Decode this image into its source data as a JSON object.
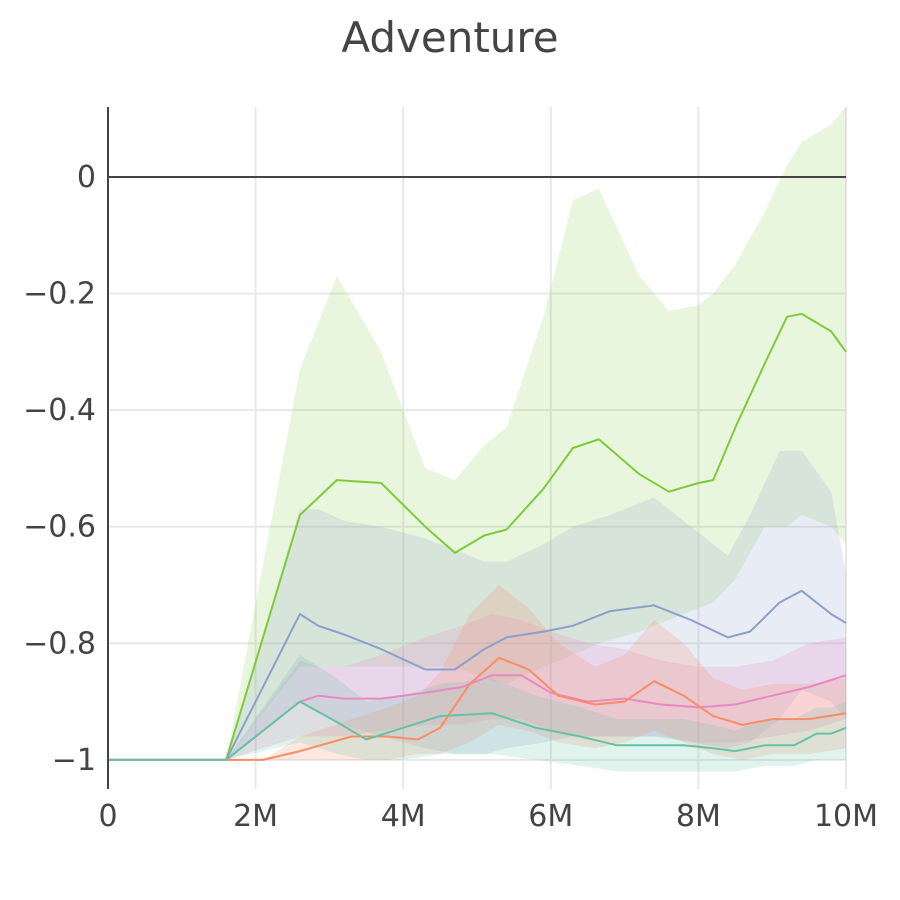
{
  "chart_data": {
    "type": "line",
    "title": "Adventure",
    "xlabel": "",
    "ylabel": "",
    "xlim": [
      0,
      10000000
    ],
    "ylim": [
      -1.05,
      0.12
    ],
    "grid": true,
    "legend": "none",
    "x_ticks": [
      {
        "value": 0,
        "label": "0"
      },
      {
        "value": 2000000,
        "label": "2M"
      },
      {
        "value": 4000000,
        "label": "4M"
      },
      {
        "value": 6000000,
        "label": "6M"
      },
      {
        "value": 8000000,
        "label": "8M"
      },
      {
        "value": 10000000,
        "label": "10M"
      }
    ],
    "y_ticks": [
      {
        "value": 0,
        "label": "0"
      },
      {
        "value": -0.2,
        "label": "−0.2"
      },
      {
        "value": -0.4,
        "label": "−0.4"
      },
      {
        "value": -0.6,
        "label": "−0.6"
      },
      {
        "value": -0.8,
        "label": "−0.8"
      },
      {
        "value": -1,
        "label": "−1"
      }
    ],
    "series": [
      {
        "color": "#7ecb3a",
        "band_color": "#7ecb3a",
        "band_opacity": 0.17,
        "x": [
          0,
          1600000,
          2600000,
          3100000,
          3700000,
          4300000,
          4700000,
          5100000,
          5400000,
          5900000,
          6300000,
          6650000,
          7200000,
          7600000,
          8000000,
          8200000,
          8500000,
          8900000,
          9200000,
          9400000,
          9800000,
          10000000
        ],
        "y": [
          -1,
          -1,
          -0.58,
          -0.52,
          -0.525,
          -0.6,
          -0.645,
          -0.615,
          -0.605,
          -0.535,
          -0.465,
          -0.45,
          -0.51,
          -0.54,
          -0.525,
          -0.52,
          -0.43,
          -0.32,
          -0.24,
          -0.235,
          -0.265,
          -0.3
        ],
        "upper": [
          -1,
          -1,
          -0.33,
          -0.17,
          -0.3,
          -0.5,
          -0.52,
          -0.46,
          -0.43,
          -0.24,
          -0.04,
          -0.02,
          -0.17,
          -0.23,
          -0.22,
          -0.2,
          -0.15,
          -0.06,
          0.02,
          0.06,
          0.09,
          0.12
        ],
        "lower": [
          -1,
          -1,
          -0.84,
          -0.84,
          -0.84,
          -0.84,
          -0.84,
          -0.86,
          -0.87,
          -0.84,
          -0.82,
          -0.8,
          -0.78,
          -0.76,
          -0.74,
          -0.73,
          -0.69,
          -0.6,
          -0.6,
          -0.58,
          -0.6,
          -0.63
        ]
      },
      {
        "color": "#8da0cb",
        "band_color": "#8da0cb",
        "band_opacity": 0.2,
        "x": [
          0,
          1600000,
          2600000,
          2850000,
          3200000,
          3700000,
          4300000,
          4700000,
          5100000,
          5400000,
          5900000,
          6300000,
          6800000,
          7400000,
          7900000,
          8400000,
          8700000,
          9100000,
          9400000,
          9800000,
          10000000
        ],
        "y": [
          -1,
          -1,
          -0.75,
          -0.77,
          -0.785,
          -0.81,
          -0.845,
          -0.845,
          -0.81,
          -0.79,
          -0.78,
          -0.77,
          -0.745,
          -0.735,
          -0.76,
          -0.79,
          -0.78,
          -0.73,
          -0.71,
          -0.75,
          -0.765
        ],
        "upper": [
          -1,
          -1,
          -0.57,
          -0.57,
          -0.59,
          -0.6,
          -0.62,
          -0.64,
          -0.66,
          -0.66,
          -0.63,
          -0.6,
          -0.58,
          -0.55,
          -0.6,
          -0.65,
          -0.58,
          -0.47,
          -0.47,
          -0.54,
          -0.68
        ],
        "lower": [
          -1,
          -1,
          -0.9,
          -0.92,
          -0.94,
          -0.96,
          -0.98,
          -0.99,
          -0.99,
          -0.98,
          -0.97,
          -0.96,
          -0.96,
          -0.96,
          -0.97,
          -0.98,
          -0.97,
          -0.93,
          -0.88,
          -0.9,
          -0.93
        ]
      },
      {
        "color": "#e78ac3",
        "band_color": "#e78ac3",
        "band_opacity": 0.22,
        "x": [
          0,
          1600000,
          2600000,
          2850000,
          3200000,
          3700000,
          4300000,
          4800000,
          5200000,
          5600000,
          6000000,
          6500000,
          7000000,
          7500000,
          8000000,
          8500000,
          9000000,
          9500000,
          10000000
        ],
        "y": [
          -1,
          -1,
          -0.9,
          -0.89,
          -0.895,
          -0.895,
          -0.885,
          -0.875,
          -0.855,
          -0.855,
          -0.885,
          -0.9,
          -0.895,
          -0.905,
          -0.91,
          -0.905,
          -0.89,
          -0.875,
          -0.855
        ],
        "upper": [
          -1,
          -1,
          -0.83,
          -0.84,
          -0.84,
          -0.82,
          -0.79,
          -0.77,
          -0.75,
          -0.76,
          -0.78,
          -0.8,
          -0.81,
          -0.83,
          -0.84,
          -0.84,
          -0.83,
          -0.8,
          -0.79
        ],
        "lower": [
          -1,
          -1,
          -0.96,
          -0.96,
          -0.96,
          -0.95,
          -0.94,
          -0.94,
          -0.93,
          -0.93,
          -0.95,
          -0.96,
          -0.96,
          -0.96,
          -0.97,
          -0.97,
          -0.96,
          -0.95,
          -0.93
        ]
      },
      {
        "color": "#fc8d62",
        "band_color": "#fc8d62",
        "band_opacity": 0.2,
        "x": [
          0,
          1600000,
          2100000,
          2600000,
          3300000,
          3800000,
          4200000,
          4500000,
          4900000,
          5300000,
          5700000,
          6100000,
          6600000,
          7000000,
          7400000,
          7800000,
          8200000,
          8600000,
          9000000,
          9500000,
          10000000
        ],
        "y": [
          -1,
          -1,
          -1,
          -0.985,
          -0.96,
          -0.96,
          -0.965,
          -0.945,
          -0.87,
          -0.825,
          -0.845,
          -0.89,
          -0.905,
          -0.9,
          -0.865,
          -0.89,
          -0.925,
          -0.94,
          -0.93,
          -0.93,
          -0.92
        ],
        "upper": [
          -1,
          -1,
          -1,
          -0.96,
          -0.93,
          -0.91,
          -0.89,
          -0.85,
          -0.75,
          -0.7,
          -0.74,
          -0.8,
          -0.84,
          -0.82,
          -0.76,
          -0.8,
          -0.86,
          -0.88,
          -0.87,
          -0.87,
          -0.86
        ],
        "lower": [
          -1,
          -1,
          -1,
          -1,
          -1,
          -1,
          -0.99,
          -0.99,
          -0.97,
          -0.94,
          -0.95,
          -0.97,
          -0.98,
          -0.97,
          -0.95,
          -0.97,
          -0.99,
          -1.0,
          -0.99,
          -0.99,
          -0.98
        ]
      },
      {
        "color": "#66c2a5",
        "band_color": "#66c2a5",
        "band_opacity": 0.2,
        "x": [
          0,
          1600000,
          2600000,
          3100000,
          3500000,
          4000000,
          4500000,
          5200000,
          5800000,
          6400000,
          6900000,
          7400000,
          7800000,
          8200000,
          8500000,
          8900000,
          9300000,
          9600000,
          9800000,
          10000000
        ],
        "y": [
          -1,
          -1,
          -0.9,
          -0.935,
          -0.965,
          -0.945,
          -0.925,
          -0.92,
          -0.945,
          -0.96,
          -0.975,
          -0.975,
          -0.975,
          -0.98,
          -0.985,
          -0.975,
          -0.975,
          -0.955,
          -0.955,
          -0.945
        ],
        "upper": [
          -1,
          -1,
          -0.82,
          -0.86,
          -0.9,
          -0.89,
          -0.87,
          -0.86,
          -0.89,
          -0.91,
          -0.93,
          -0.93,
          -0.93,
          -0.94,
          -0.95,
          -0.93,
          -0.93,
          -0.91,
          -0.91,
          -0.9
        ],
        "lower": [
          -1,
          -1,
          -0.97,
          -0.99,
          -1.0,
          -1.0,
          -0.99,
          -0.99,
          -1.0,
          -1.01,
          -1.02,
          -1.02,
          -1.02,
          -1.02,
          -1.02,
          -1.01,
          -1.01,
          -1.0,
          -1.0,
          -1.0
        ]
      }
    ]
  }
}
